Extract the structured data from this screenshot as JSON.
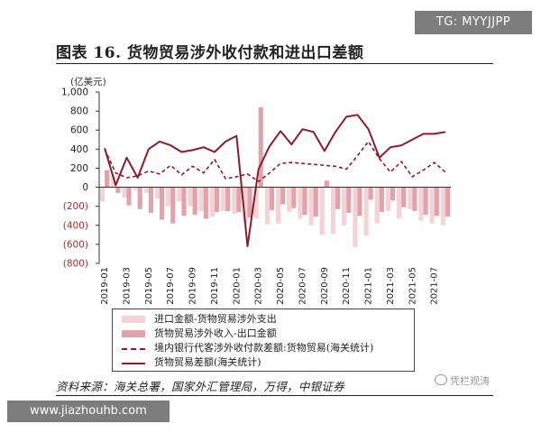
{
  "badge": {
    "text": "TG: MYYJJPP"
  },
  "title": "图表 16. 货物贸易涉外收付款和进出口差额",
  "source": "资料来源：海关总署，国家外汇管理局，万得，中银证券",
  "watermark": "凭栏观涛",
  "url": "www.jiazhouhb.com",
  "colors": {
    "dark": "#8b1a2b",
    "mid": "#e3a1a9",
    "light": "#f4d3d7",
    "neg_tick": "#a03030"
  },
  "chart_data": {
    "type": "bar",
    "y_unit": "(亿美元)",
    "ylim": [
      -800,
      1000
    ],
    "yticks": [
      -800,
      -600,
      -400,
      -200,
      0,
      200,
      400,
      600,
      800,
      1000
    ],
    "ytick_labels": [
      "(800)",
      "(600)",
      "(400)",
      "(200)",
      "0",
      "200",
      "400",
      "600",
      "800",
      "1,000"
    ],
    "x": [
      "2019-01",
      "2019-02",
      "2019-03",
      "2019-04",
      "2019-05",
      "2019-06",
      "2019-07",
      "2019-08",
      "2019-09",
      "2019-10",
      "2019-11",
      "2019-12",
      "2020-01",
      "2020-02",
      "2020-03",
      "2020-04",
      "2020-05",
      "2020-06",
      "2020-07",
      "2020-08",
      "2020-09",
      "2020-10",
      "2020-11",
      "2020-12",
      "2021-01",
      "2021-02",
      "2021-03",
      "2021-04",
      "2021-05",
      "2021-06",
      "2021-07",
      "2021-08"
    ],
    "xtick_labels": [
      "2019-01",
      "2019-03",
      "2019-05",
      "2019-07",
      "2019-09",
      "2019-11",
      "2020-01",
      "2020-03",
      "2020-05",
      "2020-07",
      "2020-09",
      "2020-11",
      "2021-01",
      "2021-03",
      "2021-05",
      "2021-07"
    ],
    "series": [
      {
        "name": "进口金额-货物贸易涉外支出",
        "kind": "bar",
        "values": [
          -150,
          130,
          -110,
          -30,
          -60,
          -120,
          -200,
          -150,
          -200,
          -250,
          -310,
          -250,
          -280,
          -370,
          -330,
          -390,
          -380,
          -260,
          -330,
          -400,
          -500,
          -490,
          -400,
          -630,
          -510,
          -380,
          -250,
          -330,
          -230,
          -350,
          -380,
          -400
        ]
      },
      {
        "name": "货物贸易涉外收入-出口金额",
        "kind": "bar",
        "values": [
          180,
          -60,
          -190,
          -230,
          -270,
          -340,
          -380,
          -300,
          -290,
          -330,
          -260,
          -250,
          -260,
          -320,
          840,
          -240,
          -180,
          -220,
          -290,
          -310,
          70,
          -230,
          -270,
          -300,
          -130,
          -260,
          -140,
          -210,
          -250,
          -290,
          -300,
          -310
        ]
      },
      {
        "name": "境内银行代客涉外收付款差额:货物贸易(海关统计)",
        "kind": "line",
        "style": "dashed",
        "values": [
          400,
          150,
          100,
          120,
          170,
          140,
          230,
          130,
          220,
          150,
          290,
          90,
          110,
          140,
          60,
          150,
          250,
          260,
          250,
          240,
          230,
          220,
          190,
          330,
          480,
          300,
          160,
          270,
          110,
          180,
          260,
          160
        ]
      },
      {
        "name": "货物贸易差额(海关统计)",
        "kind": "line",
        "style": "solid",
        "values": [
          410,
          20,
          310,
          100,
          400,
          480,
          440,
          370,
          390,
          420,
          370,
          480,
          540,
          -620,
          190,
          430,
          590,
          450,
          610,
          580,
          380,
          580,
          740,
          760,
          610,
          310,
          420,
          440,
          500,
          560,
          560,
          580
        ]
      }
    ]
  }
}
